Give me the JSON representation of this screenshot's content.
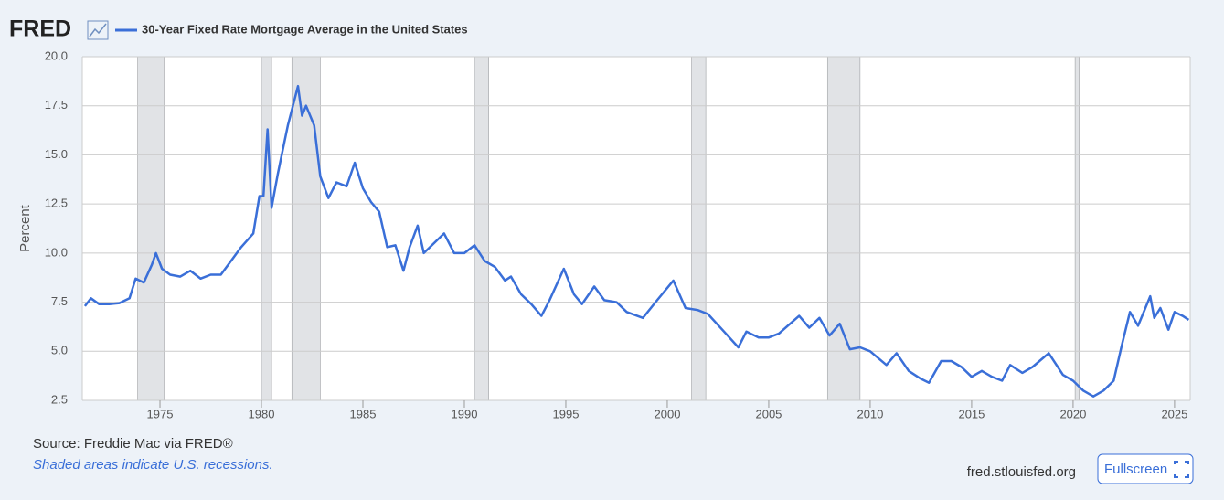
{
  "logo": "FRED",
  "chart_data": {
    "type": "line",
    "y_label": "Percent",
    "x": [
      1971.3,
      1971.6,
      1972.0,
      1972.5,
      1973.0,
      1973.5,
      1973.8,
      1974.2,
      1974.6,
      1974.8,
      1975.1,
      1975.5,
      1976.0,
      1976.5,
      1977.0,
      1977.5,
      1978.0,
      1978.5,
      1979.0,
      1979.6,
      1979.9,
      1980.1,
      1980.3,
      1980.5,
      1980.8,
      1981.0,
      1981.3,
      1981.8,
      1982.0,
      1982.2,
      1982.6,
      1982.9,
      1983.3,
      1983.7,
      1984.2,
      1984.6,
      1985.0,
      1985.4,
      1985.8,
      1986.2,
      1986.6,
      1987.0,
      1987.3,
      1987.7,
      1988.0,
      1988.5,
      1989.0,
      1989.5,
      1990.0,
      1990.5,
      1991.0,
      1991.5,
      1992.0,
      1992.3,
      1992.8,
      1993.3,
      1993.8,
      1994.2,
      1994.9,
      1995.4,
      1995.8,
      1996.4,
      1996.9,
      1997.5,
      1998.0,
      1998.8,
      1999.5,
      2000.3,
      2000.9,
      2001.5,
      2002.0,
      2002.8,
      2003.5,
      2003.9,
      2004.5,
      2005.0,
      2005.5,
      2006.5,
      2007.0,
      2007.5,
      2008.0,
      2008.5,
      2009.0,
      2009.5,
      2010.0,
      2010.8,
      2011.3,
      2011.9,
      2012.5,
      2012.9,
      2013.5,
      2014.0,
      2014.5,
      2015.0,
      2015.5,
      2016.0,
      2016.5,
      2016.9,
      2017.5,
      2018.0,
      2018.8,
      2019.5,
      2020.0,
      2020.5,
      2021.0,
      2021.5,
      2022.0,
      2022.4,
      2022.8,
      2023.2,
      2023.8,
      2024.0,
      2024.3,
      2024.7,
      2025.0,
      2025.4,
      2025.7
    ],
    "series": [
      {
        "name": "30-Year Fixed Rate Mortgage Average in the United States",
        "color": "#3a6fd8",
        "values": [
          7.3,
          7.7,
          7.4,
          7.4,
          7.45,
          7.7,
          8.7,
          8.5,
          9.4,
          10.0,
          9.2,
          8.9,
          8.8,
          9.1,
          8.7,
          8.9,
          8.9,
          9.6,
          10.3,
          11.0,
          12.9,
          12.9,
          16.3,
          12.3,
          14.0,
          15.0,
          16.5,
          18.5,
          17.0,
          17.5,
          16.5,
          13.9,
          12.8,
          13.6,
          13.4,
          14.6,
          13.3,
          12.6,
          12.1,
          10.3,
          10.4,
          9.1,
          10.3,
          11.4,
          10.0,
          10.5,
          11.0,
          10.0,
          10.0,
          10.4,
          9.6,
          9.3,
          8.6,
          8.8,
          7.9,
          7.4,
          6.8,
          7.6,
          9.2,
          7.9,
          7.4,
          8.3,
          7.6,
          7.5,
          7.0,
          6.7,
          7.6,
          8.6,
          7.2,
          7.1,
          6.9,
          6.0,
          5.2,
          6.0,
          5.7,
          5.7,
          5.9,
          6.8,
          6.2,
          6.7,
          5.8,
          6.4,
          5.1,
          5.2,
          5.0,
          4.3,
          4.9,
          4.0,
          3.6,
          3.4,
          4.5,
          4.5,
          4.2,
          3.7,
          4.0,
          3.7,
          3.5,
          4.3,
          3.9,
          4.2,
          4.9,
          3.8,
          3.5,
          3.0,
          2.7,
          3.0,
          3.5,
          5.3,
          7.0,
          6.3,
          7.8,
          6.7,
          7.2,
          6.1,
          7.0,
          6.8,
          6.6
        ]
      }
    ],
    "recessions": [
      [
        1973.9,
        1975.2
      ],
      [
        1980.0,
        1980.5
      ],
      [
        1981.5,
        1982.9
      ],
      [
        1990.5,
        1991.2
      ],
      [
        2001.2,
        2001.9
      ],
      [
        2007.9,
        2009.5
      ],
      [
        2020.1,
        2020.3
      ]
    ],
    "xlim": [
      1971.17,
      2025.77
    ],
    "xticks": [
      1975,
      1980,
      1985,
      1990,
      1995,
      2000,
      2005,
      2010,
      2015,
      2020,
      2025
    ],
    "ylim": [
      2.5,
      20
    ],
    "yticks": [
      2.5,
      {
        "value": 5,
        "label": "5.0"
      },
      7.5,
      {
        "value": 10,
        "label": "10.0"
      },
      12.5,
      {
        "value": 15,
        "label": "15.0"
      },
      17.5,
      {
        "value": 20,
        "label": "20.0"
      }
    ],
    "grid": true
  },
  "footer": {
    "source": "Source: Freddie Mac via FRED®",
    "note": "Shaded areas indicate U.S. recessions.",
    "url": "fred.stlouisfed.org",
    "button": "Fullscreen"
  }
}
